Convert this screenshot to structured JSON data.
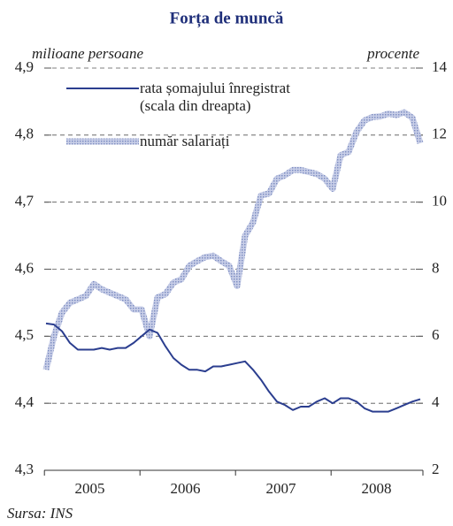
{
  "chart_data": {
    "type": "line",
    "title": "Forța de muncă",
    "ylabel": "milioane persoane",
    "y2label": "procente",
    "source": "Sursa: INS",
    "categories": [
      null,
      null,
      null,
      null,
      null,
      "2005",
      null,
      null,
      null,
      null,
      null,
      null,
      null,
      null,
      null,
      null,
      null,
      "2006",
      null,
      null,
      null,
      null,
      null,
      null,
      null,
      null,
      null,
      null,
      null,
      "2007",
      null,
      null,
      null,
      null,
      null,
      null,
      null,
      null,
      null,
      null,
      null,
      "2008",
      null,
      null,
      null,
      null,
      null,
      null
    ],
    "ylim": [
      4.3,
      4.9
    ],
    "yticks": [
      {
        "value": 4.3,
        "label": "4,3"
      },
      {
        "value": 4.4,
        "label": "4,4"
      },
      {
        "value": 4.5,
        "label": "4,5"
      },
      {
        "value": 4.6,
        "label": "4,6"
      },
      {
        "value": 4.7,
        "label": "4,7"
      },
      {
        "value": 4.8,
        "label": "4,8"
      },
      {
        "value": 4.9,
        "label": "4,9"
      }
    ],
    "y2lim": [
      2,
      14
    ],
    "y2ticks": [
      2,
      4,
      6,
      8,
      10,
      12,
      14
    ],
    "grid": true,
    "series": [
      {
        "name": "rata șomajului înregistrat (scala din dreapta)",
        "color": "#2b3e8f",
        "axis": "y2",
        "values": [
          6.38,
          6.35,
          6.15,
          5.8,
          5.6,
          5.6,
          5.6,
          5.65,
          5.6,
          5.65,
          5.65,
          5.8,
          6.0,
          6.2,
          6.1,
          5.7,
          5.35,
          5.15,
          5.0,
          5.0,
          4.95,
          5.1,
          5.1,
          5.15,
          5.2,
          5.25,
          5.0,
          4.7,
          4.35,
          4.05,
          3.95,
          3.8,
          3.9,
          3.9,
          4.05,
          4.15,
          4.0,
          4.15,
          4.15,
          4.05,
          3.85,
          3.75,
          3.75,
          3.75,
          3.85,
          3.95,
          4.05,
          4.12
        ]
      },
      {
        "name": "număr salariați",
        "color": "#aab4da",
        "axis": "y",
        "values": [
          4.45,
          4.5,
          4.535,
          4.55,
          4.555,
          4.56,
          4.578,
          4.57,
          4.565,
          4.56,
          4.555,
          4.54,
          4.54,
          4.5,
          4.558,
          4.563,
          4.58,
          4.585,
          4.605,
          4.612,
          4.618,
          4.62,
          4.612,
          4.605,
          4.575,
          4.65,
          4.67,
          4.71,
          4.713,
          4.735,
          4.74,
          4.748,
          4.748,
          4.745,
          4.742,
          4.735,
          4.72,
          4.77,
          4.775,
          4.805,
          4.822,
          4.827,
          4.828,
          4.832,
          4.83,
          4.834,
          4.826,
          4.788
        ]
      }
    ]
  }
}
